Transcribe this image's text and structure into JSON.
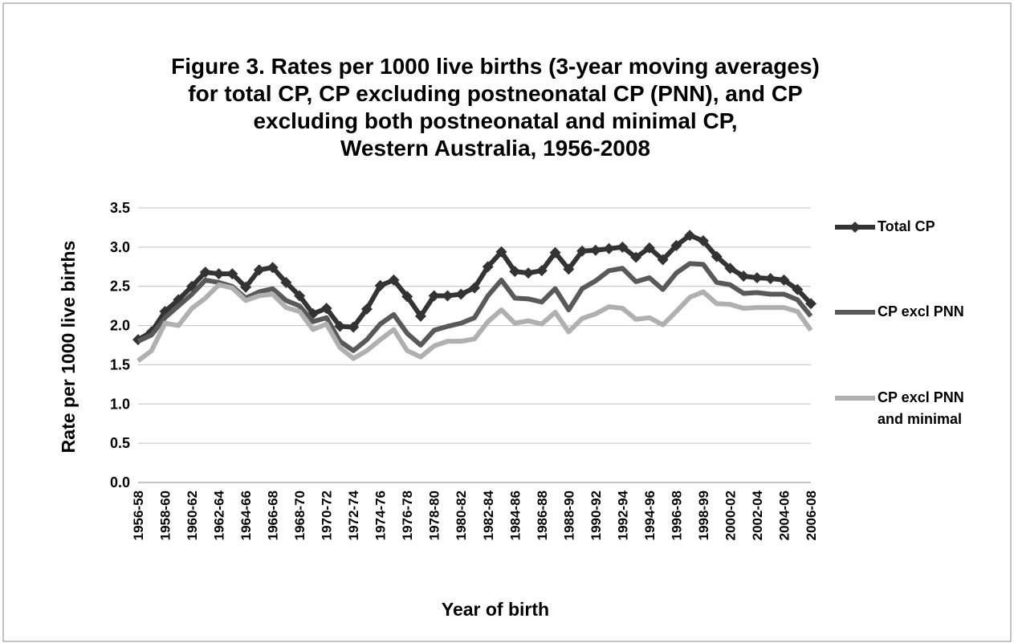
{
  "chart_data": {
    "type": "line",
    "title": [
      "Figure 3. Rates per 1000 live births (3-year moving averages)",
      "for total CP, CP excluding postneonatal CP (PNN), and CP",
      "excluding both postneonatal and minimal CP,",
      "Western Australia, 1956-2008"
    ],
    "x_label": "Year of birth",
    "y_label": "Rate per 1000 live births",
    "categories": [
      "1956-58",
      null,
      "1958-60",
      null,
      "1960-62",
      null,
      "1962-64",
      null,
      "1964-66",
      null,
      "1966-68",
      null,
      "1968-70",
      null,
      "1970-72",
      null,
      "1972-74",
      null,
      "1974-76",
      null,
      "1976-78",
      null,
      "1978-80",
      null,
      "1980-82",
      null,
      "1982-84",
      null,
      "1984-86",
      null,
      "1986-88",
      null,
      "1988-90",
      null,
      "1990-92",
      null,
      "1992-94",
      null,
      "1994-96",
      null,
      "1996-98",
      null,
      "1998-99",
      null,
      "2000-02",
      null,
      "2002-04",
      null,
      "2004-06",
      null,
      "2006-08"
    ],
    "series": [
      {
        "name": "Total CP",
        "color": "#333333",
        "marker": "diamond",
        "values": [
          1.82,
          1.92,
          2.18,
          2.33,
          2.5,
          2.68,
          2.66,
          2.66,
          2.49,
          2.71,
          2.74,
          2.55,
          2.38,
          2.15,
          2.22,
          1.99,
          1.98,
          2.21,
          2.51,
          2.58,
          2.37,
          2.12,
          2.38,
          2.38,
          2.4,
          2.48,
          2.75,
          2.94,
          2.69,
          2.67,
          2.7,
          2.93,
          2.72,
          2.95,
          2.96,
          2.98,
          3.0,
          2.87,
          2.99,
          2.84,
          3.02,
          3.15,
          3.08,
          2.88,
          2.73,
          2.63,
          2.61,
          2.6,
          2.58,
          2.46,
          2.28
        ]
      },
      {
        "name": "CP excl PNN",
        "color": "#595959",
        "values": [
          1.8,
          1.88,
          2.1,
          2.25,
          2.4,
          2.58,
          2.55,
          2.5,
          2.35,
          2.43,
          2.47,
          2.32,
          2.25,
          2.05,
          2.1,
          1.8,
          1.68,
          1.82,
          2.02,
          2.14,
          1.9,
          1.75,
          1.94,
          1.99,
          2.03,
          2.1,
          2.38,
          2.58,
          2.35,
          2.34,
          2.3,
          2.47,
          2.2,
          2.47,
          2.57,
          2.7,
          2.73,
          2.56,
          2.61,
          2.46,
          2.67,
          2.79,
          2.78,
          2.55,
          2.52,
          2.41,
          2.42,
          2.4,
          2.4,
          2.33,
          2.12
        ]
      },
      {
        "name": "CP excl PNN and minimal",
        "color": "#b0b0b0",
        "values": [
          1.55,
          1.68,
          2.03,
          2.0,
          2.22,
          2.35,
          2.52,
          2.48,
          2.32,
          2.38,
          2.4,
          2.23,
          2.18,
          1.95,
          2.02,
          1.72,
          1.58,
          1.68,
          1.82,
          1.95,
          1.68,
          1.6,
          1.74,
          1.8,
          1.8,
          1.83,
          2.05,
          2.2,
          2.03,
          2.06,
          2.02,
          2.17,
          1.92,
          2.09,
          2.15,
          2.24,
          2.22,
          2.08,
          2.1,
          2.01,
          2.18,
          2.36,
          2.43,
          2.28,
          2.27,
          2.22,
          2.23,
          2.23,
          2.23,
          2.18,
          1.94
        ]
      }
    ],
    "ylim": [
      0,
      3.5
    ],
    "yticks": [
      {
        "value": 0,
        "label": "0.0"
      },
      0.5,
      {
        "value": 1,
        "label": "1.0"
      },
      1.5,
      {
        "value": 2,
        "label": "2.0"
      },
      2.5,
      {
        "value": 3,
        "label": "3.0"
      },
      3.5
    ],
    "grid": true,
    "legend": "right"
  }
}
